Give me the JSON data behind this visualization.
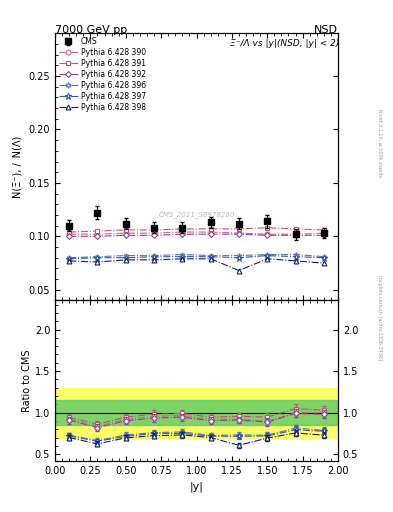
{
  "title_left": "7000 GeV pp",
  "title_right": "NSD",
  "ylabel_main": "N(Ξ⁻), / N(Λ)",
  "ylabel_ratio": "Ratio to CMS",
  "xlabel": "|y|",
  "annotation": "Ξ⁻/Λ vs |y|(NSD, |y| < 2)",
  "watermark": "CMS_2011_S8978280",
  "rivet_label": "Rivet 3.1.10, ≥ 100k events",
  "right_label": "mcplots.cern.ch [arXiv:1306.3436]",
  "xlim": [
    0,
    2.0
  ],
  "ylim_main": [
    0.04,
    0.29
  ],
  "ylim_ratio": [
    0.42,
    2.35
  ],
  "yticks_main": [
    0.05,
    0.1,
    0.15,
    0.2,
    0.25
  ],
  "yticks_ratio": [
    0.5,
    1.0,
    1.5,
    2.0
  ],
  "cms_x": [
    0.1,
    0.3,
    0.5,
    0.7,
    0.9,
    1.1,
    1.3,
    1.5,
    1.7,
    1.9
  ],
  "cms_y": [
    0.11,
    0.122,
    0.112,
    0.108,
    0.108,
    0.113,
    0.112,
    0.114,
    0.102,
    0.103
  ],
  "cms_yerr": [
    0.005,
    0.006,
    0.005,
    0.005,
    0.005,
    0.005,
    0.005,
    0.006,
    0.005,
    0.005
  ],
  "p390_x": [
    0.1,
    0.3,
    0.5,
    0.7,
    0.9,
    1.1,
    1.3,
    1.5,
    1.7,
    1.9
  ],
  "p390_y": [
    0.102,
    0.102,
    0.103,
    0.103,
    0.104,
    0.104,
    0.103,
    0.102,
    0.102,
    0.103
  ],
  "p391_x": [
    0.1,
    0.3,
    0.5,
    0.7,
    0.9,
    1.1,
    1.3,
    1.5,
    1.7,
    1.9
  ],
  "p391_y": [
    0.104,
    0.105,
    0.106,
    0.106,
    0.107,
    0.107,
    0.107,
    0.108,
    0.107,
    0.106
  ],
  "p392_x": [
    0.1,
    0.3,
    0.5,
    0.7,
    0.9,
    1.1,
    1.3,
    1.5,
    1.7,
    1.9
  ],
  "p392_y": [
    0.1,
    0.1,
    0.101,
    0.101,
    0.102,
    0.102,
    0.102,
    0.101,
    0.101,
    0.101
  ],
  "p396_x": [
    0.1,
    0.3,
    0.5,
    0.7,
    0.9,
    1.1,
    1.3,
    1.5,
    1.7,
    1.9
  ],
  "p396_y": [
    0.08,
    0.081,
    0.082,
    0.082,
    0.083,
    0.082,
    0.082,
    0.083,
    0.083,
    0.081
  ],
  "p397_x": [
    0.1,
    0.3,
    0.5,
    0.7,
    0.9,
    1.1,
    1.3,
    1.5,
    1.7,
    1.9
  ],
  "p397_y": [
    0.079,
    0.08,
    0.08,
    0.081,
    0.081,
    0.081,
    0.08,
    0.082,
    0.081,
    0.08
  ],
  "p398_x": [
    0.1,
    0.3,
    0.5,
    0.7,
    0.9,
    1.1,
    1.3,
    1.5,
    1.7,
    1.9
  ],
  "p398_y": [
    0.077,
    0.076,
    0.078,
    0.078,
    0.079,
    0.079,
    0.068,
    0.079,
    0.077,
    0.075
  ],
  "p390_color": "#cc6688",
  "p391_color": "#bb5577",
  "p392_color": "#884499",
  "p396_color": "#5577bb",
  "p397_color": "#3355aa",
  "p398_color": "#112266",
  "green_band": [
    0.85,
    1.15
  ],
  "yellow_band": [
    0.7,
    1.3
  ]
}
